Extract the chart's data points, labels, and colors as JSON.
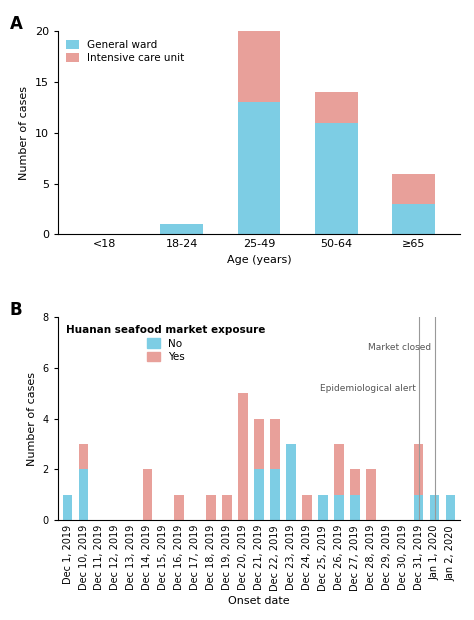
{
  "panel_a": {
    "categories": [
      "<18",
      "18-24",
      "25-49",
      "50-64",
      "≥65"
    ],
    "general_ward": [
      0,
      1,
      13,
      11,
      3
    ],
    "icu": [
      0,
      0,
      7,
      3,
      3
    ],
    "color_gw": "#7DCDE4",
    "color_icu": "#E8A09A",
    "ylabel": "Number of cases",
    "xlabel": "Age (years)",
    "ylim": [
      0,
      20
    ],
    "yticks": [
      0,
      5,
      10,
      15,
      20
    ],
    "legend_gw": "General ward",
    "legend_icu": "Intensive care unit",
    "label": "A"
  },
  "panel_b": {
    "dates": [
      "Dec 1, 2019",
      "Dec 10, 2019",
      "Dec 11, 2019",
      "Dec 12, 2019",
      "Dec 13, 2019",
      "Dec 14, 2019",
      "Dec 15, 2019",
      "Dec 16, 2019",
      "Dec 17, 2019",
      "Dec 18, 2019",
      "Dec 19, 2019",
      "Dec 20, 2019",
      "Dec 21, 2019",
      "Dec 22, 2019",
      "Dec 23, 2019",
      "Dec 24, 2019",
      "Dec 25, 2019",
      "Dec 26, 2019",
      "Dec 27, 2019",
      "Dec 28, 2019",
      "Dec 29, 2019",
      "Dec 30, 2019",
      "Dec 31, 2019",
      "Jan 1, 2020",
      "Jan 2, 2020"
    ],
    "no_exposure": [
      1,
      2,
      0,
      0,
      0,
      0,
      0,
      0,
      0,
      0,
      0,
      0,
      2,
      2,
      3,
      0,
      1,
      1,
      1,
      0,
      0,
      0,
      1,
      1,
      1
    ],
    "yes_exposure": [
      0,
      1,
      0,
      0,
      0,
      2,
      0,
      1,
      0,
      1,
      1,
      5,
      2,
      2,
      0,
      1,
      0,
      2,
      1,
      2,
      0,
      0,
      2,
      0,
      0
    ],
    "color_no": "#7DCDE4",
    "color_yes": "#E8A09A",
    "ylabel": "Number of cases",
    "xlabel": "Onset date",
    "ylim": [
      0,
      8
    ],
    "yticks": [
      0,
      2,
      4,
      6,
      8
    ],
    "legend_no": "No",
    "legend_yes": "Yes",
    "legend_title": "Huanan seafood market exposure",
    "label": "B",
    "annot_epi": "Epidemiological alert",
    "annot_market": "Market closed",
    "epi_date_idx": 22,
    "market_date_idx": 23
  }
}
